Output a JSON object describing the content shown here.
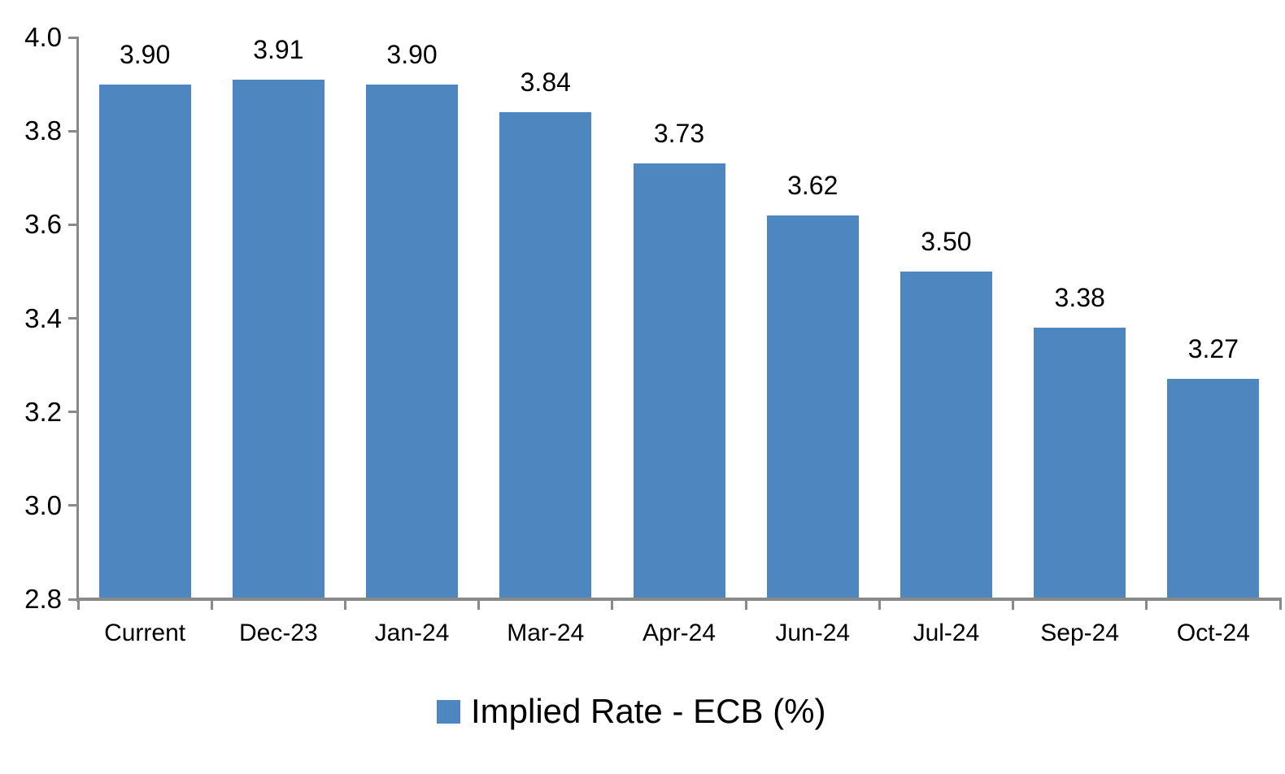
{
  "chart_data": {
    "type": "bar",
    "title": "",
    "legend": "Implied Rate - ECB (%)",
    "legend_position": "bottom-center",
    "categories": [
      "Current",
      "Dec-23",
      "Jan-24",
      "Mar-24",
      "Apr-24",
      "Jun-24",
      "Jul-24",
      "Sep-24",
      "Oct-24"
    ],
    "values": [
      3.9,
      3.91,
      3.9,
      3.84,
      3.73,
      3.62,
      3.5,
      3.38,
      3.27
    ],
    "data_labels": [
      "3.90",
      "3.91",
      "3.90",
      "3.84",
      "3.73",
      "3.62",
      "3.50",
      "3.38",
      "3.27"
    ],
    "yticks": [
      "4.0",
      "3.8",
      "3.6",
      "3.4",
      "3.2",
      "3.0",
      "2.8"
    ],
    "ylim": [
      2.8,
      4.0
    ],
    "ytick_step": 0.2,
    "grid": false,
    "xlabel": "",
    "ylabel": "",
    "colors": {
      "bar": "#4E86BF",
      "axis": "#898989",
      "text": "#000000",
      "background": "#FFFFFF"
    }
  }
}
